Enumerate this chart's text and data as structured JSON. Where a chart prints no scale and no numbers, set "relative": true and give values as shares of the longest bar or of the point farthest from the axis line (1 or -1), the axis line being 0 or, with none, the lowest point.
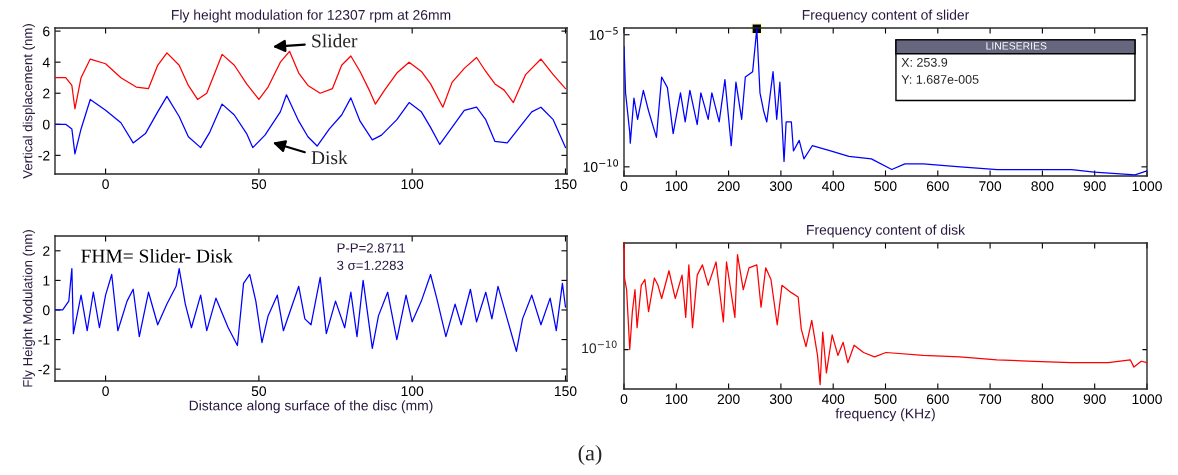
{
  "chart_data": [
    {
      "type": "line",
      "title": "Fly height modulation for 12307 rpm at 26mm",
      "ylabel": "Vertical displacement (nm)",
      "xlim": [
        -16.5,
        150.5
      ],
      "ylim": [
        -3.2,
        6.2
      ],
      "xticks": [
        0,
        50,
        100,
        150
      ],
      "yticks": [
        -2,
        0,
        2,
        4,
        6
      ],
      "series": [
        {
          "color": "#ff0000",
          "x": [
            -16.5,
            -13,
            -11,
            -10,
            -8,
            -5,
            0,
            5,
            10,
            14,
            17,
            20,
            24,
            27,
            30,
            33,
            36,
            38,
            42,
            46,
            50,
            53,
            57,
            60,
            63,
            66,
            70,
            74,
            77,
            80,
            83,
            86,
            88,
            91,
            95,
            99,
            103,
            106,
            110,
            113,
            117,
            121,
            124,
            127,
            130,
            133,
            137,
            142,
            146,
            150
          ],
          "values": [
            3,
            3,
            2.5,
            1.0,
            3,
            4.2,
            3.9,
            3.0,
            2.4,
            2.3,
            3.8,
            4.6,
            3.8,
            2.5,
            1.6,
            2.0,
            3.5,
            4.5,
            3.8,
            2.6,
            1.6,
            2.4,
            4.0,
            4.7,
            3.3,
            2.5,
            2.0,
            2.3,
            3.8,
            4.4,
            3.4,
            2.2,
            1.3,
            2.2,
            3.3,
            4.0,
            3.4,
            2.6,
            1.1,
            2.7,
            3.6,
            4.3,
            3.4,
            2.6,
            2.2,
            1.4,
            3.2,
            4.2,
            3.2,
            2.3
          ]
        },
        {
          "color": "#0000ff",
          "x": [
            -16.5,
            -13,
            -11,
            -10,
            -8,
            -5,
            0,
            5,
            9,
            13,
            17,
            20,
            24,
            27,
            31,
            34,
            38,
            42,
            46,
            48,
            52,
            57,
            59,
            63,
            66,
            69,
            73,
            77,
            80,
            83,
            87,
            90,
            95,
            99,
            103,
            106,
            109,
            113,
            117,
            121,
            124,
            127,
            131,
            135,
            139,
            142,
            146,
            150
          ],
          "values": [
            0,
            0,
            -0.3,
            -1.9,
            -0.3,
            1.6,
            0.9,
            0.1,
            -1.2,
            -0.6,
            0.8,
            1.8,
            0.5,
            -0.8,
            -1.5,
            -0.5,
            1.3,
            0.6,
            -0.6,
            -1.5,
            -0.7,
            0.8,
            1.9,
            0.2,
            -0.8,
            -1.4,
            -0.3,
            0.6,
            1.7,
            0.2,
            -1.0,
            -0.7,
            0.3,
            1.4,
            0.8,
            -0.2,
            -1.3,
            -0.2,
            0.9,
            1.1,
            0.3,
            -1.1,
            -1.2,
            -0.2,
            0.8,
            1.1,
            0.3,
            -1.5
          ]
        }
      ],
      "annotations": [
        "Slider",
        "Disk"
      ]
    },
    {
      "type": "line",
      "xlabel": "Distance along surface of the disc (mm)",
      "ylabel": "Fly Height Modulation (nm)",
      "xlim": [
        -16.5,
        150.5
      ],
      "ylim": [
        -2.4,
        2.5
      ],
      "xticks": [
        0,
        50,
        100,
        150
      ],
      "yticks": [
        -2,
        -1,
        0,
        1,
        2
      ],
      "series": [
        {
          "color": "#0000ff",
          "x": [
            -16.5,
            -14,
            -12,
            -11,
            -10.5,
            -8,
            -6,
            -4,
            -2,
            0,
            2,
            4,
            7,
            9,
            11,
            14,
            17,
            20,
            23,
            24,
            26,
            28,
            31,
            33,
            36,
            40,
            43,
            45,
            47,
            49,
            51,
            53,
            56,
            58,
            61,
            63,
            65,
            67,
            70,
            72,
            75,
            78,
            80,
            82,
            84,
            87,
            89,
            92,
            95,
            98,
            100,
            103,
            106,
            108,
            111,
            114,
            116,
            119,
            121,
            124,
            126,
            128,
            131,
            134,
            136,
            139,
            142,
            145,
            147,
            149,
            150
          ],
          "values": [
            0,
            0,
            0.3,
            1.4,
            -0.8,
            0.5,
            -0.7,
            0.6,
            -0.6,
            0.5,
            1.2,
            -0.7,
            0.3,
            0.7,
            -0.9,
            0.6,
            -0.5,
            0.2,
            0.8,
            1.4,
            0.2,
            -0.6,
            0.5,
            -0.7,
            0.4,
            -0.6,
            -1.2,
            0.9,
            1.2,
            0.3,
            -1.1,
            -0.2,
            0.5,
            -0.7,
            0.2,
            0.8,
            -0.3,
            -0.5,
            1.1,
            -0.8,
            0.3,
            -0.6,
            0.6,
            -0.9,
            1.0,
            -1.3,
            -0.2,
            0.6,
            -1.0,
            0.5,
            -0.4,
            0.3,
            1.2,
            0.4,
            -0.9,
            0.2,
            -0.5,
            0.7,
            -0.4,
            0.6,
            -0.3,
            0.8,
            -0.3,
            -1.4,
            -0.3,
            0.5,
            -0.5,
            0.4,
            -0.7,
            0.9,
            0.1
          ]
        }
      ],
      "annotations": [
        "FHM= Slider- Disk",
        "P-P=2.8711",
        "3 σ=1.2283"
      ]
    },
    {
      "type": "line",
      "title": "Frequency content of slider",
      "log": "y",
      "xlim": [
        0,
        1000
      ],
      "ylim": [
        4.5e-11,
        1.8e-05
      ],
      "xticks": [
        0,
        100,
        200,
        300,
        400,
        500,
        600,
        700,
        800,
        900,
        1000
      ],
      "yticks": [
        {
          "value": 1e-05,
          "label": "10$^{−5}$"
        },
        {
          "value": 1e-10,
          "label": "10$^{−10}$"
        }
      ],
      "series": [
        {
          "color": "#0000ff",
          "x": [
            0,
            3,
            11,
            12,
            19,
            26,
            37,
            47,
            62,
            72,
            83,
            94,
            108,
            117,
            126,
            140,
            147,
            161,
            168,
            182,
            193,
            205,
            214,
            225,
            232,
            246,
            253.9,
            260,
            267,
            273,
            285,
            292,
            298,
            306,
            310,
            320,
            324,
            335,
            344,
            360,
            395,
            430,
            473,
            512,
            537,
            572,
            643,
            714,
            785,
            856,
            899,
            977,
            1000
          ],
          "values": [
            3.6e-06,
            6.3e-08,
            2e-09,
            7.9e-10,
            4e-08,
            6.3e-09,
            7.9e-08,
            1.3e-08,
            1.3e-09,
            2.5e-07,
            1e-07,
            1.8e-09,
            6.3e-08,
            5e-09,
            7.9e-08,
            4e-09,
            6.3e-08,
            6.3e-09,
            6.3e-08,
            5e-09,
            2e-07,
            6.3e-10,
            1.6e-07,
            6.3e-09,
            2.5e-07,
            4e-07,
            1.687e-05,
            6.3e-08,
            1.3e-08,
            5e-09,
            4e-07,
            6.3e-09,
            1.6e-07,
            1.6e-10,
            5e-09,
            5e-09,
            4e-10,
            1e-09,
            2e-10,
            6.3e-10,
            4e-10,
            2.5e-10,
            2e-10,
            7.9e-11,
            1.3e-10,
            1.3e-10,
            1e-10,
            7.9e-11,
            7.9e-11,
            7.9e-11,
            6.3e-11,
            5e-11,
            7e-11
          ]
        }
      ],
      "annotations": [
        "LINESERIES",
        "X: 253.9\nY: 1.687e-005"
      ]
    },
    {
      "type": "line",
      "title": "Frequency content of disk",
      "xlabel": "frequency (KHz)",
      "relative": true,
      "xlim": [
        0,
        1000
      ],
      "xticks": [
        0,
        100,
        200,
        300,
        400,
        500,
        600,
        700,
        800,
        900,
        1000
      ],
      "series": [
        {
          "color": "#ff0000",
          "x": [
            0,
            1,
            5,
            11,
            16,
            21,
            25,
            33,
            40,
            47,
            58,
            65,
            72,
            86,
            98,
            111,
            118,
            124,
            131,
            140,
            150,
            161,
            176,
            190,
            196,
            212,
            217,
            228,
            239,
            254,
            262,
            271,
            281,
            293,
            302,
            320,
            333,
            339,
            348,
            359,
            370,
            375,
            380,
            387,
            398,
            409,
            419,
            428,
            440,
            458,
            479,
            501,
            572,
            642,
            713,
            784,
            855,
            926,
            968,
            975,
            989,
            1000
          ],
          "values": [
            1.0,
            0.76,
            0.68,
            0.27,
            0.53,
            0.68,
            0.42,
            0.71,
            0.75,
            0.53,
            0.76,
            0.71,
            0.62,
            0.81,
            0.62,
            0.78,
            0.49,
            0.85,
            0.42,
            0.78,
            0.85,
            0.71,
            0.87,
            0.46,
            0.87,
            0.49,
            0.92,
            0.68,
            0.83,
            0.85,
            0.56,
            0.83,
            0.75,
            0.44,
            0.71,
            0.66,
            0.63,
            0.41,
            0.29,
            0.47,
            0.23,
            0.03,
            0.39,
            0.11,
            0.37,
            0.23,
            0.32,
            0.18,
            0.3,
            0.25,
            0.22,
            0.25,
            0.23,
            0.22,
            0.2,
            0.19,
            0.18,
            0.18,
            0.2,
            0.15,
            0.19,
            0.18
          ]
        }
      ],
      "annotations": [
        "10$^{−10}$",
        "(a)"
      ]
    }
  ]
}
